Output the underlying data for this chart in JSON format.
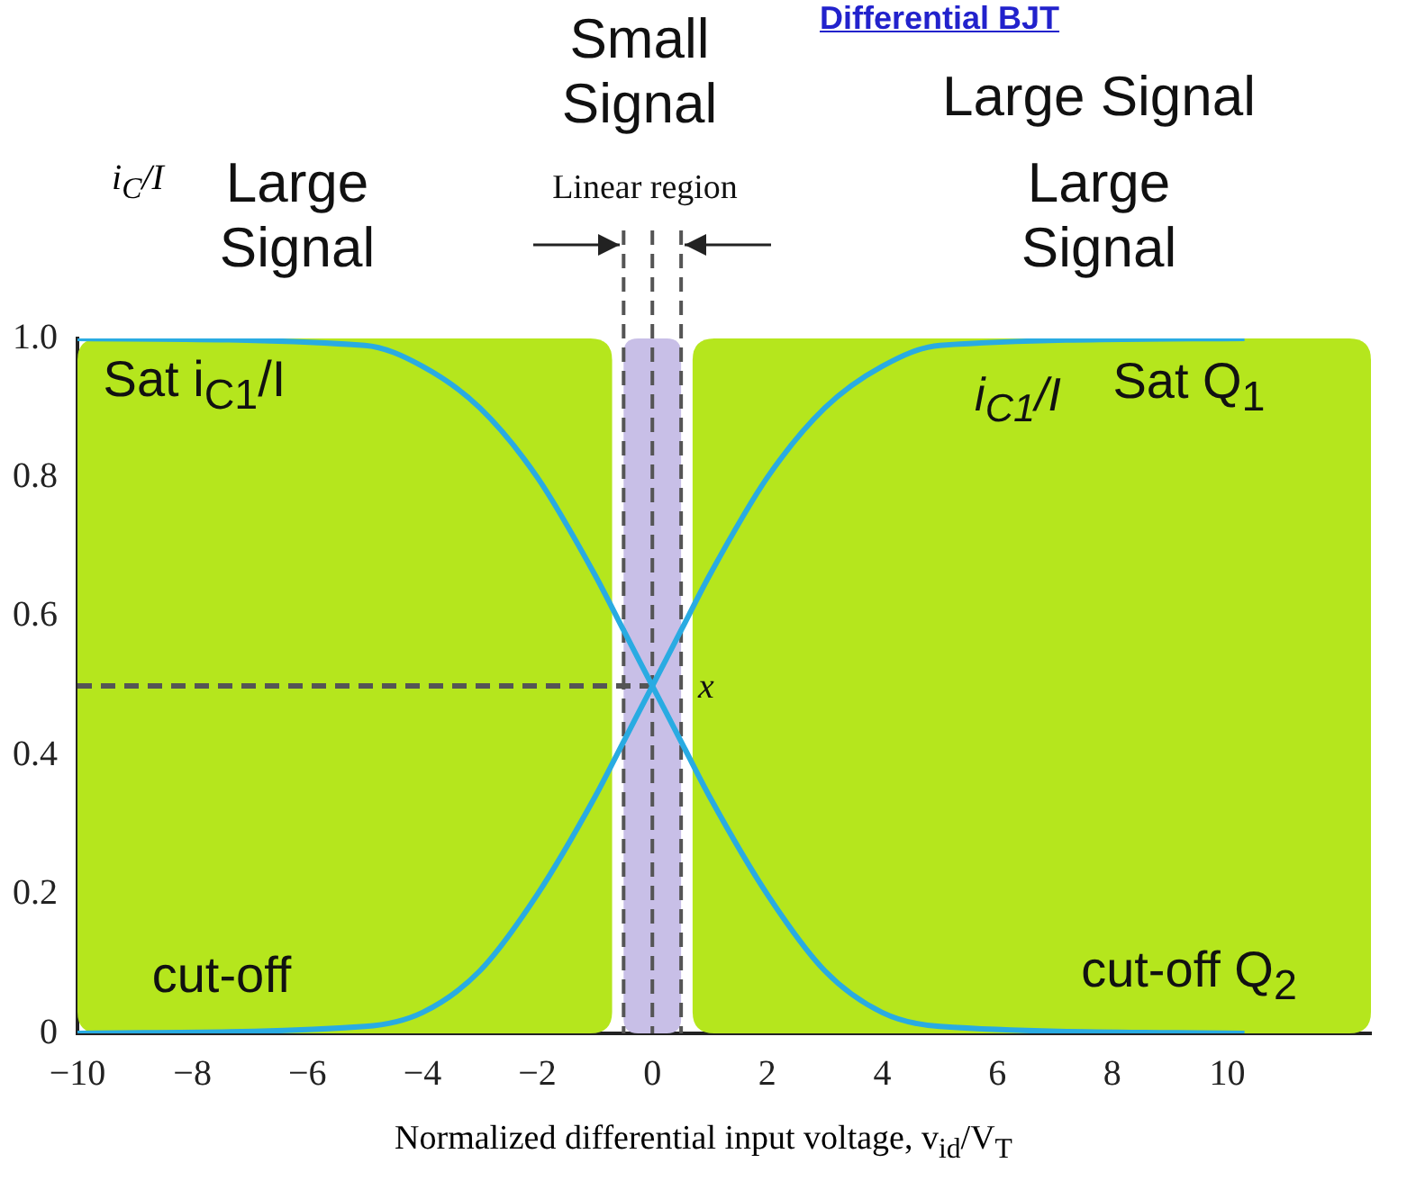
{
  "chart_data": {
    "type": "line",
    "title": "Differential BJT",
    "xlabel": "Normalized differential input voltage, v$_{id}$/V$_{T}$",
    "ylabel": "i$_{C}$/I",
    "x": [
      -10,
      -5,
      -4,
      -3,
      -2,
      -1,
      -0.5,
      0,
      0.5,
      1,
      2,
      3,
      4,
      5,
      10.3
    ],
    "series": [
      {
        "color": "#29abe2",
        "values": [
          1,
          0.99,
          0.96,
          0.9,
          0.8,
          0.66,
          0.58,
          0.5,
          0.42,
          0.34,
          0.2,
          0.09,
          0.03,
          0.01,
          0
        ]
      },
      {
        "color": "#29abe2",
        "values": [
          0,
          0.01,
          0.03,
          0.09,
          0.2,
          0.34,
          0.42,
          0.5,
          0.58,
          0.66,
          0.8,
          0.9,
          0.96,
          0.99,
          1
        ]
      },
      {
        "color": "#555555",
        "x": [
          -10,
          0
        ],
        "values": [
          0.5,
          0.5
        ],
        "line_style": "dashed"
      }
    ],
    "xlim": [
      -10,
      12.5
    ],
    "xticks": [
      {
        "value": -10,
        "label": "−10"
      },
      {
        "value": -8,
        "label": "−8"
      },
      {
        "value": -6,
        "label": "−6"
      },
      {
        "value": -4,
        "label": "−4"
      },
      {
        "value": -2,
        "label": "−2"
      },
      0,
      2,
      4,
      6,
      8,
      10
    ],
    "ylim": [
      0,
      1
    ],
    "yticks": [
      0,
      0.2,
      0.4,
      0.6,
      0.8,
      {
        "value": 1,
        "label": "1.0"
      }
    ],
    "bands": [
      {
        "axis": "x",
        "from": -10,
        "to": -0.7,
        "color": "#b5e61d"
      },
      {
        "axis": "x",
        "from": 0.7,
        "to": 12.5,
        "color": "#b5e61d"
      },
      {
        "axis": "x",
        "from": -0.5,
        "to": 0.5,
        "color": "#c8bfe7"
      }
    ],
    "ref_lines": [
      {
        "axis": "x",
        "value": -0.5,
        "line_style": "dashed",
        "color": "#555555"
      },
      {
        "axis": "x",
        "value": 0,
        "line_style": "dashed",
        "color": "#555555"
      },
      {
        "axis": "x",
        "value": 0.5,
        "line_style": "dashed",
        "color": "#555555"
      }
    ],
    "annotations": [
      "Large Signal",
      "Small Signal",
      "Linear region",
      "Large Signal",
      "Large Signal",
      "Sat i$_{C1}$/I",
      "cut-off",
      "i$_{C1}$/I",
      "Sat Q$_{1}$",
      "cut-off Q$_{2}$",
      "x"
    ],
    "grid": false,
    "legend": false,
    "marker": "none",
    "line_style": "solid"
  }
}
